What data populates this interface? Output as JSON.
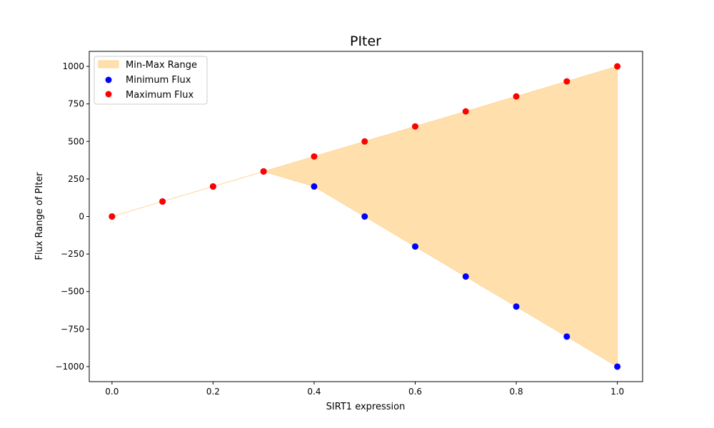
{
  "chart_data": {
    "type": "scatter",
    "title": "PIter",
    "xlabel": "SIRT1 expression",
    "ylabel": "Flux Range of PIter",
    "x": [
      0.0,
      0.1,
      0.2,
      0.3,
      0.4,
      0.5,
      0.6,
      0.7,
      0.8,
      0.9,
      1.0
    ],
    "xlim": [
      -0.045,
      1.05
    ],
    "ylim": [
      -1100,
      1100
    ],
    "x_ticks": [
      0.0,
      0.2,
      0.4,
      0.6,
      0.8,
      1.0
    ],
    "x_tick_labels": [
      "0.0",
      "0.2",
      "0.4",
      "0.6",
      "0.8",
      "1.0"
    ],
    "y_ticks": [
      -1000,
      -750,
      -500,
      -250,
      0,
      250,
      500,
      750,
      1000
    ],
    "y_tick_labels": [
      "−1000",
      "−750",
      "−500",
      "−250",
      "0",
      "250",
      "500",
      "750",
      "1000"
    ],
    "grid": false,
    "legend_position": "upper-left",
    "range_band": {
      "name": "Min-Max Range",
      "color": "#FFE0AD",
      "edge_color": "#FFD59A"
    },
    "series": [
      {
        "name": "Minimum Flux",
        "color": "#0000FF",
        "values": [
          0,
          100,
          200,
          300,
          200,
          0,
          -200,
          -400,
          -600,
          -800,
          -1000
        ]
      },
      {
        "name": "Maximum Flux",
        "color": "#FF0000",
        "values": [
          0,
          100,
          200,
          300,
          400,
          500,
          600,
          700,
          800,
          900,
          1000
        ]
      }
    ]
  }
}
